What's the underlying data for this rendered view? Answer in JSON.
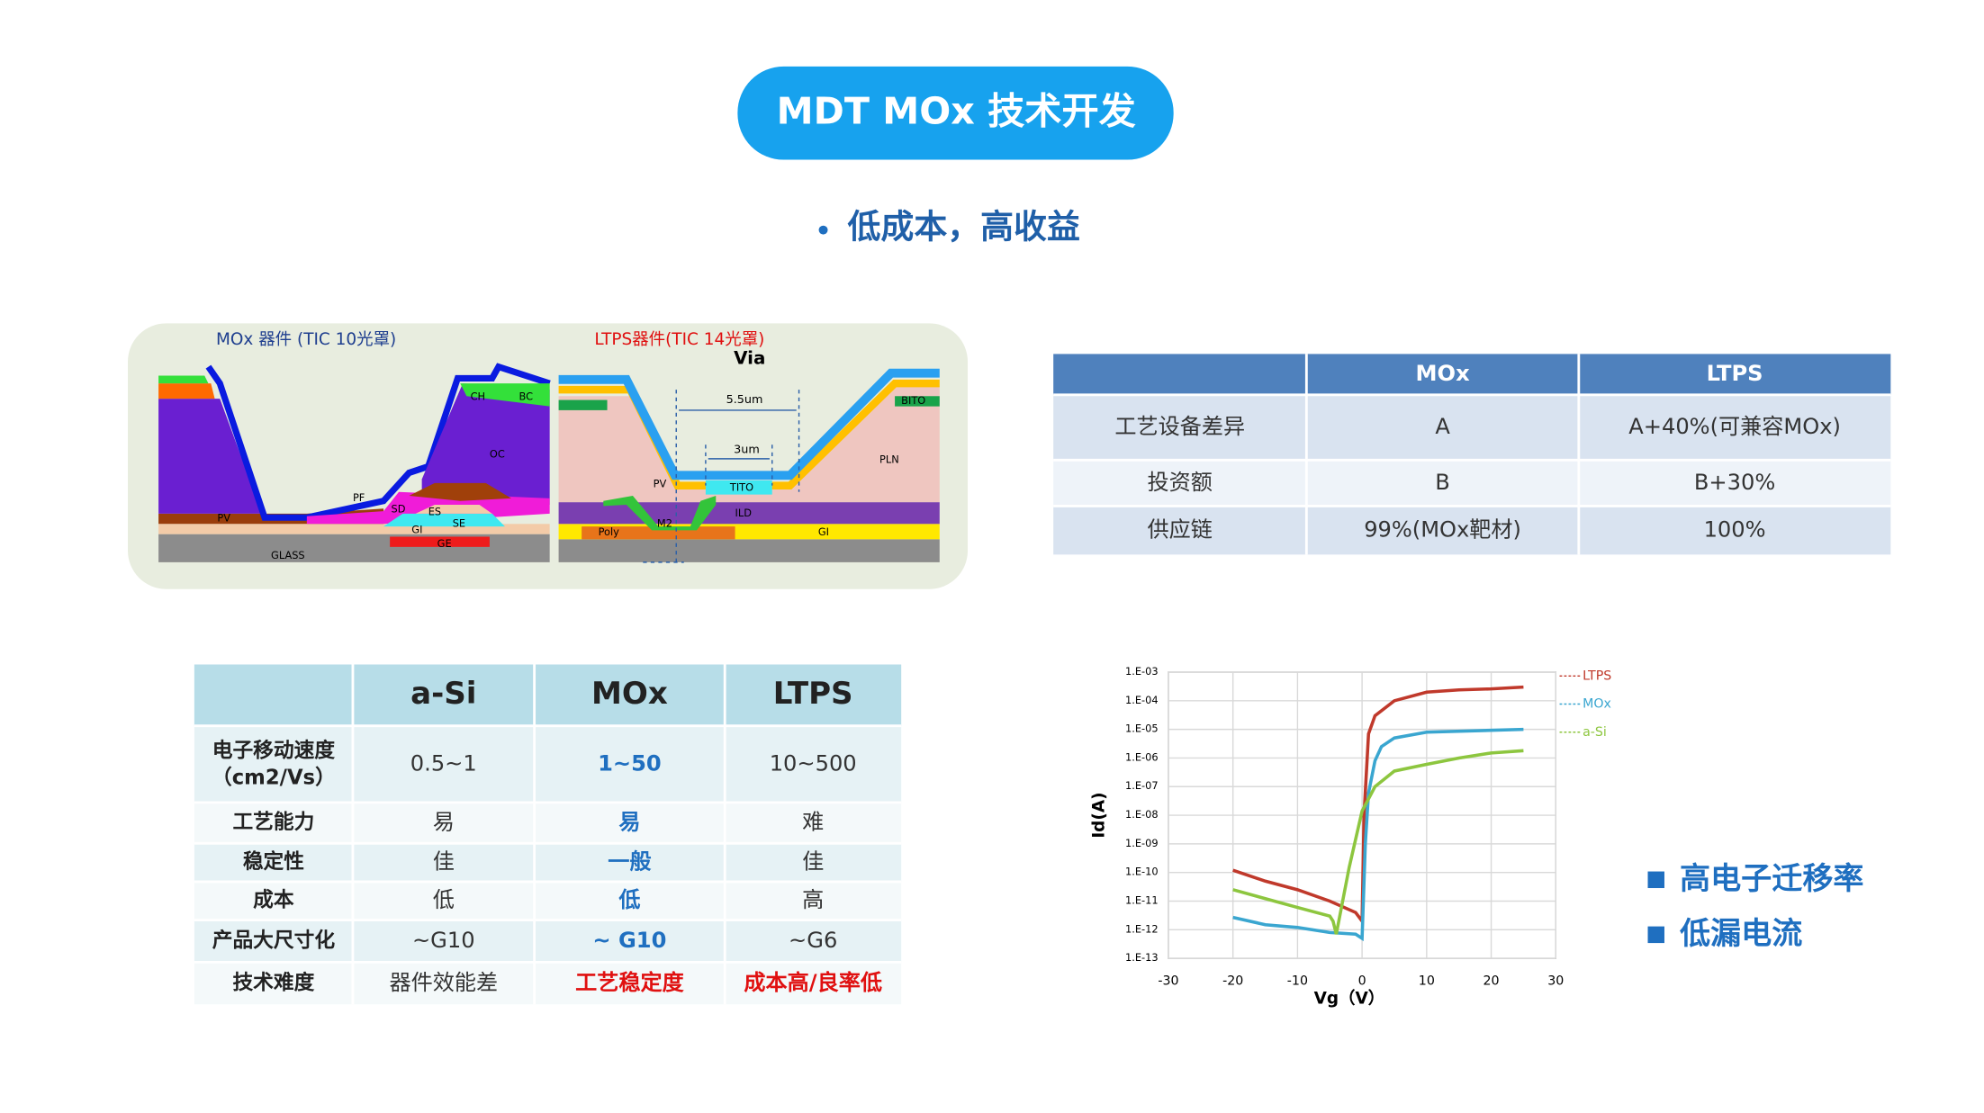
{
  "header": {
    "title": "MDT MOx 技术开发",
    "subtitle": "低成本，高收益"
  },
  "diagram": {
    "mox_title": "MOx 器件 (TIC 10光罩)",
    "ltps_title": "LTPS器件(TIC 14光罩)",
    "via": "Via",
    "dim_outer": "5.5um",
    "dim_inner": "3um",
    "mox_layers": [
      "PV",
      "PF",
      "SD",
      "ES",
      "SE",
      "GI",
      "GE",
      "GLASS",
      "CH",
      "BC",
      "OC"
    ],
    "ltps_layers": [
      "BITO",
      "PLN",
      "PV",
      "TITO",
      "ILD",
      "GI",
      "Poly",
      "M2"
    ]
  },
  "cost_table": {
    "columns": [
      "MOx",
      "LTPS"
    ],
    "rows": [
      {
        "label": "工艺设备差异",
        "cells": [
          "A",
          "A+40%(可兼容MOx)"
        ]
      },
      {
        "label": "投资额",
        "cells": [
          "B",
          "B+30%"
        ]
      },
      {
        "label": "供应链",
        "cells": [
          "99%(MOx靶材)",
          "100%"
        ]
      }
    ]
  },
  "compare_table": {
    "columns": [
      "a-Si",
      "MOx",
      "LTPS"
    ],
    "rows": [
      {
        "label": "电子移动速度",
        "unit": "（cm2/Vs）",
        "cells": [
          "0.5~1",
          "1~50",
          "10~500"
        ]
      },
      {
        "label": "工艺能力",
        "cells": [
          "易",
          "易",
          "难"
        ]
      },
      {
        "label": "稳定性",
        "cells": [
          "佳",
          "一般",
          "佳"
        ]
      },
      {
        "label": "成本",
        "cells": [
          "低",
          "低",
          "高"
        ]
      },
      {
        "label": "产品大尺寸化",
        "cells": [
          "~G10",
          "~ G10",
          "~G6"
        ]
      },
      {
        "label": "技术难度",
        "cells": [
          "器件效能差",
          "工艺稳定度",
          "成本高/良率低"
        ]
      }
    ]
  },
  "highlights": [
    "高电子迁移率",
    "低漏电流"
  ],
  "chart_data": {
    "type": "line",
    "xlabel": "Vg（V）",
    "ylabel": "Id(A)",
    "yscale": "log",
    "grid": true,
    "xlim": [
      -30,
      30
    ],
    "xticks": [
      -30,
      -20,
      -10,
      0,
      10,
      20,
      30
    ],
    "ylim": [
      1e-13,
      0.001
    ],
    "yticks": [
      {
        "value": 1e-13,
        "label": "1.E-13"
      },
      {
        "value": 1e-12,
        "label": "1.E-12"
      },
      {
        "value": 1e-11,
        "label": "1.E-11"
      },
      {
        "value": 1e-10,
        "label": "1.E-10"
      },
      {
        "value": 1e-09,
        "label": "1.E-09"
      },
      {
        "value": 1e-08,
        "label": "1.E-08"
      },
      {
        "value": 1e-07,
        "label": "1.E-07"
      },
      {
        "value": 1e-06,
        "label": "1.E-06"
      },
      {
        "value": 1e-05,
        "label": "1.E-05"
      },
      {
        "value": 0.0001,
        "label": "1.E-04"
      },
      {
        "value": 0.001,
        "label": "1.E-03"
      }
    ],
    "series": [
      {
        "name": "LTPS",
        "color": "#c0392b",
        "x": [
          -20,
          -15,
          -10,
          -5,
          -1,
          0,
          0.3,
          1,
          2,
          5,
          10,
          15,
          20,
          25
        ],
        "values": [
          1.2e-10,
          5e-11,
          2.5e-11,
          1e-11,
          4e-12,
          2e-12,
          1e-08,
          7e-06,
          3e-05,
          0.0001,
          0.0002,
          0.00024,
          0.00026,
          0.0003
        ]
      },
      {
        "name": "MOx",
        "color": "#3aa6d0",
        "x": [
          -20,
          -15,
          -10,
          -5,
          -1,
          0,
          0.5,
          1,
          2,
          3,
          5,
          10,
          25
        ],
        "values": [
          2.7e-12,
          1.5e-12,
          1.2e-12,
          8e-13,
          7e-13,
          5e-13,
          1e-09,
          6e-08,
          8e-07,
          2.5e-06,
          5e-06,
          8e-06,
          1e-05
        ]
      },
      {
        "name": "a-Si",
        "color": "#8dc63f",
        "x": [
          -20,
          -10,
          -5,
          -4.5,
          -4,
          -2,
          0,
          2,
          5,
          10,
          15,
          20,
          25
        ],
        "values": [
          2.5e-11,
          6e-12,
          3e-12,
          2e-12,
          7e-13,
          1.5e-10,
          1.4e-08,
          1e-07,
          3.5e-07,
          6e-07,
          1e-06,
          1.5e-06,
          1.8e-06
        ]
      }
    ]
  }
}
